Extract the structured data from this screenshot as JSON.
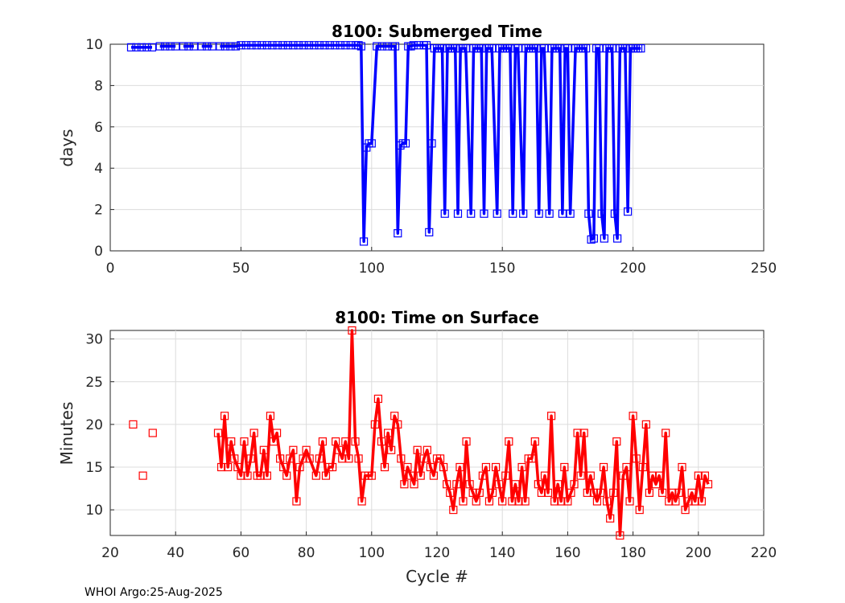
{
  "footer": "WHOI Argo:25-Aug-2025",
  "colors": {
    "blue": "#0000ff",
    "red": "#ff0000",
    "grid": "#dcdcdc",
    "axis": "#262626"
  },
  "chart_data": [
    {
      "type": "line",
      "title": "8100: Submerged Time",
      "xlabel": "",
      "ylabel": "days",
      "xlim": [
        0,
        250
      ],
      "ylim": [
        0,
        10
      ],
      "xticks": [
        0,
        50,
        100,
        150,
        200,
        250
      ],
      "yticks": [
        0,
        2,
        4,
        6,
        8,
        10
      ],
      "grid": true,
      "markers": "square",
      "series": [
        {
          "name": "Submerged Time",
          "color": "#0000ff",
          "x": [
            8,
            10,
            12,
            14,
            16,
            19,
            21,
            23,
            25,
            28,
            30,
            32,
            35,
            37,
            39,
            42,
            44,
            46,
            48,
            50,
            52,
            54,
            56,
            58,
            60,
            62,
            64,
            66,
            68,
            70,
            72,
            74,
            76,
            78,
            80,
            82,
            84,
            86,
            88,
            90,
            92,
            94,
            95,
            96,
            97,
            98,
            99,
            100,
            102,
            104,
            106,
            108,
            109,
            110,
            111,
            112,
            113,
            114,
            115,
            116,
            118,
            120,
            121,
            122,
            123,
            124,
            125,
            126,
            127,
            128,
            129,
            130,
            131,
            132,
            133,
            134,
            135,
            136,
            138,
            139,
            140,
            141,
            142,
            143,
            144,
            145,
            146,
            148,
            149,
            150,
            151,
            152,
            153,
            154,
            155,
            156,
            158,
            159,
            160,
            161,
            162,
            163,
            164,
            165,
            166,
            168,
            169,
            170,
            171,
            172,
            173,
            174,
            175,
            176,
            178,
            179,
            180,
            181,
            182,
            183,
            184,
            185,
            186,
            187,
            188,
            189,
            190,
            191,
            192,
            193,
            194,
            195,
            196,
            197,
            198,
            199,
            200,
            201,
            202,
            203
          ],
          "y": [
            9.85,
            9.85,
            9.85,
            9.85,
            9.85,
            9.9,
            9.9,
            9.9,
            9.9,
            9.9,
            9.9,
            9.9,
            9.9,
            9.9,
            9.9,
            9.9,
            9.9,
            9.9,
            9.9,
            9.95,
            9.95,
            9.95,
            9.95,
            9.95,
            9.95,
            9.95,
            9.95,
            9.95,
            9.95,
            9.95,
            9.95,
            9.95,
            9.95,
            9.95,
            9.95,
            9.95,
            9.95,
            9.95,
            9.95,
            9.95,
            9.95,
            9.95,
            9.95,
            9.9,
            0.45,
            5.0,
            5.2,
            5.2,
            9.9,
            9.9,
            9.9,
            9.9,
            9.9,
            0.85,
            5.1,
            5.2,
            5.2,
            9.9,
            9.9,
            9.95,
            9.95,
            9.95,
            9.95,
            0.9,
            5.2,
            9.8,
            9.8,
            9.8,
            9.8,
            1.8,
            9.8,
            9.8,
            9.8,
            9.8,
            1.8,
            9.8,
            9.8,
            9.8,
            1.8,
            9.8,
            9.8,
            9.8,
            9.8,
            1.8,
            9.8,
            9.8,
            9.8,
            1.8,
            9.8,
            9.8,
            9.8,
            9.8,
            9.8,
            1.8,
            9.8,
            9.8,
            1.8,
            9.8,
            9.8,
            9.8,
            9.8,
            9.8,
            1.8,
            9.8,
            9.8,
            1.8,
            9.8,
            9.8,
            9.8,
            9.8,
            1.8,
            9.8,
            9.8,
            1.8,
            9.8,
            9.8,
            9.8,
            9.8,
            9.8,
            1.8,
            0.55,
            0.6,
            9.8,
            9.8,
            1.8,
            0.6,
            9.8,
            9.8,
            9.8,
            1.8,
            0.6,
            9.8,
            9.8,
            9.8,
            1.9,
            9.8,
            9.8,
            9.8,
            9.8,
            9.8
          ]
        }
      ]
    },
    {
      "type": "line",
      "title": "8100: Time on Surface",
      "xlabel": "Cycle #",
      "ylabel": "Minutes",
      "xlim": [
        20,
        220
      ],
      "ylim": [
        7,
        31
      ],
      "xticks": [
        20,
        40,
        60,
        80,
        100,
        120,
        140,
        160,
        180,
        200,
        220
      ],
      "yticks": [
        10,
        15,
        20,
        25,
        30
      ],
      "grid": true,
      "markers": "square",
      "series": [
        {
          "name": "Time on Surface",
          "color": "#ff0000",
          "x": [
            27,
            30,
            33,
            53,
            54,
            55,
            56,
            57,
            58,
            59,
            60,
            61,
            62,
            63,
            64,
            65,
            66,
            67,
            68,
            69,
            70,
            71,
            72,
            73,
            74,
            75,
            76,
            77,
            78,
            79,
            80,
            81,
            83,
            84,
            85,
            86,
            87,
            88,
            89,
            90,
            91,
            92,
            93,
            94,
            95,
            96,
            97,
            98,
            99,
            100,
            101,
            102,
            103,
            104,
            105,
            106,
            107,
            108,
            109,
            110,
            111,
            112,
            113,
            114,
            115,
            116,
            117,
            118,
            119,
            120,
            121,
            122,
            123,
            124,
            125,
            126,
            127,
            128,
            129,
            130,
            131,
            132,
            133,
            134,
            135,
            136,
            137,
            138,
            139,
            140,
            141,
            142,
            143,
            144,
            145,
            146,
            147,
            148,
            149,
            150,
            151,
            152,
            153,
            154,
            155,
            156,
            157,
            158,
            159,
            160,
            161,
            162,
            163,
            164,
            165,
            166,
            167,
            168,
            169,
            170,
            171,
            172,
            173,
            174,
            175,
            176,
            177,
            178,
            179,
            180,
            181,
            182,
            183,
            184,
            185,
            186,
            187,
            188,
            189,
            190,
            191,
            192,
            193,
            194,
            195,
            196,
            197,
            198,
            199,
            200,
            201,
            202,
            203
          ],
          "y": [
            20,
            14,
            19,
            19,
            15,
            21,
            15,
            18,
            16,
            15,
            14,
            18,
            14,
            16,
            19,
            14,
            14,
            17,
            14,
            21,
            18,
            19,
            16,
            15,
            14,
            16,
            17,
            11,
            15,
            16,
            17,
            16,
            14,
            16,
            18,
            14,
            15,
            15,
            18,
            17,
            16,
            18,
            16,
            31,
            18,
            16,
            11,
            14,
            14,
            14,
            20,
            23,
            18,
            15,
            19,
            17,
            21,
            20,
            16,
            13,
            15,
            14,
            13,
            17,
            14,
            16,
            17,
            15,
            14,
            16,
            16,
            15,
            13,
            12,
            10,
            13,
            15,
            11,
            18,
            13,
            12,
            11,
            12,
            14,
            15,
            11,
            12,
            15,
            13,
            11,
            14,
            18,
            11,
            13,
            11,
            15,
            11,
            16,
            16,
            18,
            13,
            12,
            14,
            12,
            21,
            11,
            13,
            11,
            15,
            11,
            12,
            13,
            19,
            14,
            19,
            12,
            14,
            12,
            11,
            12,
            15,
            11,
            9,
            12,
            18,
            7,
            14,
            15,
            11,
            21,
            16,
            10,
            15,
            20,
            12,
            14,
            13,
            14,
            12,
            19,
            11,
            12,
            11,
            12,
            15,
            10,
            11,
            12,
            11,
            14,
            11,
            14,
            13
          ]
        }
      ]
    }
  ]
}
